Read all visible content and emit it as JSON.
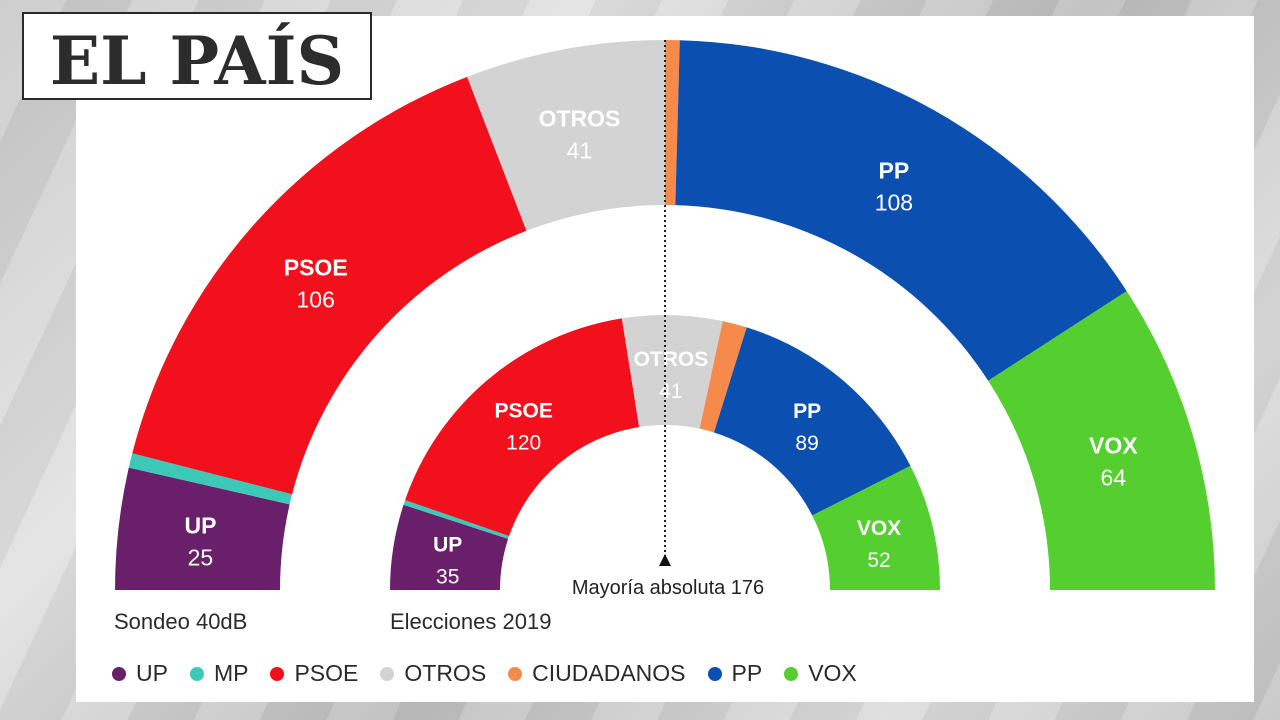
{
  "brand": {
    "logo_text": "EL PAÍS"
  },
  "chart_data": [
    {
      "type": "parliament-donut",
      "caption": "Sondeo 40dB",
      "series": [
        {
          "key": "UP",
          "label": "UP",
          "value": 25,
          "color": "#6a1f6b"
        },
        {
          "key": "MP",
          "label": "",
          "value": 3,
          "color": "#3cc9b8"
        },
        {
          "key": "PSOE",
          "label": "PSOE",
          "value": 106,
          "color": "#f2101c"
        },
        {
          "key": "OTROS",
          "label": "OTROS",
          "value": 41,
          "color": "#d3d3d3"
        },
        {
          "key": "CIUDADANOS",
          "label": "",
          "value": 3,
          "color": "#f58a4b"
        },
        {
          "key": "PP",
          "label": "PP",
          "value": 108,
          "color": "#0b4fb1"
        },
        {
          "key": "VOX",
          "label": "VOX",
          "value": 64,
          "color": "#55cf2f"
        }
      ]
    },
    {
      "type": "parliament-donut",
      "caption": "Elecciones 2019",
      "series": [
        {
          "key": "UP",
          "label": "UP",
          "value": 35,
          "color": "#6a1f6b"
        },
        {
          "key": "MP",
          "label": "",
          "value": 2,
          "color": "#3cc9b8"
        },
        {
          "key": "PSOE",
          "label": "PSOE",
          "value": 120,
          "color": "#f2101c"
        },
        {
          "key": "OTROS",
          "label": "OTROS",
          "value": 41,
          "color": "#d3d3d3"
        },
        {
          "key": "CIUDADANOS",
          "label": "",
          "value": 10,
          "color": "#f58a4b"
        },
        {
          "key": "PP",
          "label": "PP",
          "value": 89,
          "color": "#0b4fb1"
        },
        {
          "key": "VOX",
          "label": "VOX",
          "value": 52,
          "color": "#55cf2f"
        }
      ]
    }
  ],
  "majority_label": "Mayoría absoluta 176",
  "legend": [
    {
      "label": "UP",
      "color": "#6a1f6b"
    },
    {
      "label": "MP",
      "color": "#3cc9b8"
    },
    {
      "label": "PSOE",
      "color": "#f2101c"
    },
    {
      "label": "OTROS",
      "color": "#d3d3d3"
    },
    {
      "label": "CIUDADANOS",
      "color": "#f58a4b"
    },
    {
      "label": "PP",
      "color": "#0b4fb1"
    },
    {
      "label": "VOX",
      "color": "#55cf2f"
    }
  ]
}
